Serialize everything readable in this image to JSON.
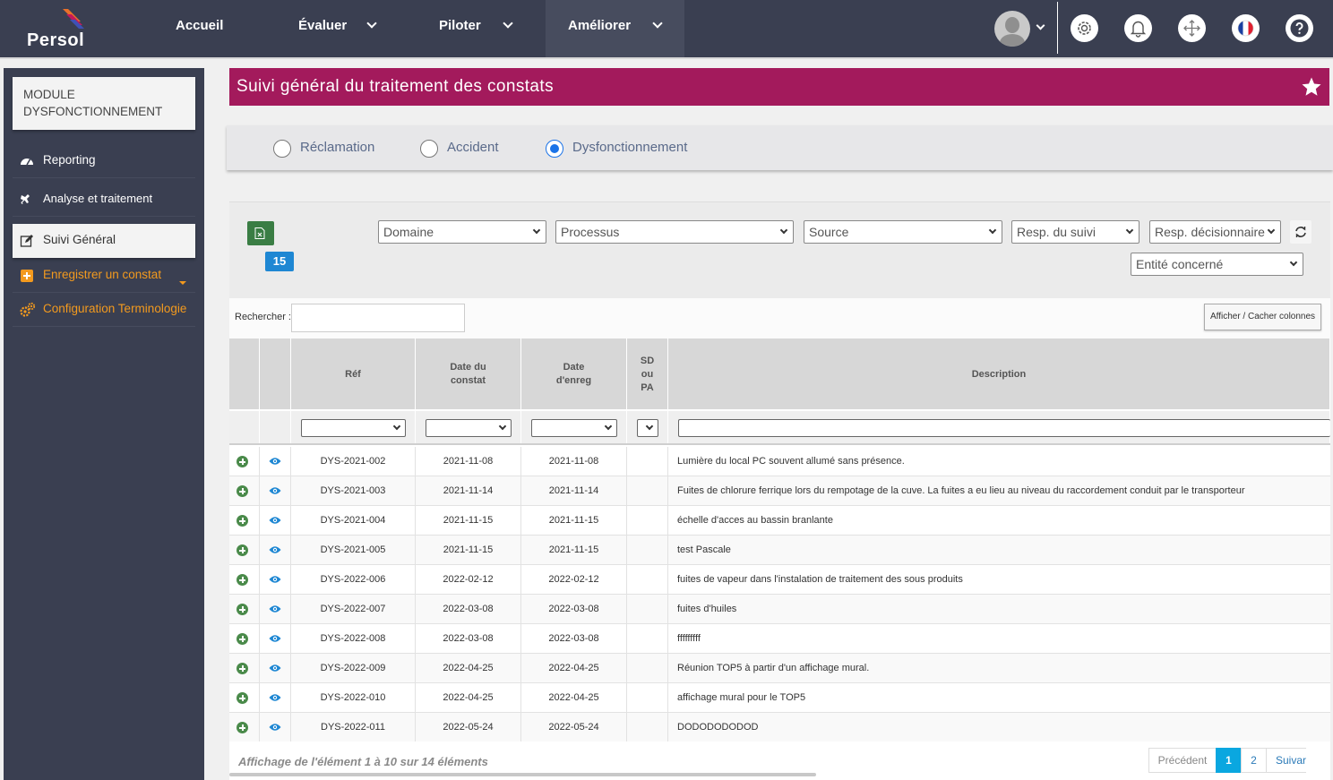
{
  "brand": {
    "name": "Persol"
  },
  "nav": {
    "items": [
      {
        "label": "Accueil"
      },
      {
        "label": "Évaluer"
      },
      {
        "label": "Piloter"
      },
      {
        "label": "Améliorer"
      }
    ]
  },
  "sidebar": {
    "module_title": "MODULE DYSFONCTIONNEMENT",
    "items": [
      {
        "label": "Reporting"
      },
      {
        "label": "Analyse et traitement"
      },
      {
        "label": "Suivi Général"
      },
      {
        "label": "Enregistrer un constat"
      },
      {
        "label": "Configuration Terminologie"
      }
    ]
  },
  "page": {
    "title": "Suivi général du traitement des constats"
  },
  "radios": {
    "options": [
      {
        "label": "Réclamation",
        "checked": false
      },
      {
        "label": "Accident",
        "checked": false
      },
      {
        "label": "Dysfonctionnement",
        "checked": true
      }
    ]
  },
  "filters": {
    "count": "15",
    "domaine": "Domaine",
    "processus": "Processus",
    "source": "Source",
    "resp_suivi": "Resp. du suivi",
    "resp_decisionnaire": "Resp. décisionnaire",
    "entite": "Entité concerné"
  },
  "search": {
    "label": "Rechercher :",
    "value": "",
    "columns_button": "Afficher / Cacher colonnes"
  },
  "table": {
    "headers": {
      "ref": "Réf",
      "date_constat": "Date du constat",
      "date_enreg": "Date d'enreg",
      "sd_pa": "SD ou PA",
      "description": "Description"
    },
    "rows": [
      {
        "ref": "DYS-2021-002",
        "date_constat": "2021-11-08",
        "date_enreg": "2021-11-08",
        "description": "Lumière du local PC souvent allumé sans présence."
      },
      {
        "ref": "DYS-2021-003",
        "date_constat": "2021-11-14",
        "date_enreg": "2021-11-14",
        "description": "Fuites de chlorure ferrique lors du rempotage de la cuve. La fuites a eu lieu au niveau du raccordement conduit par le transporteur"
      },
      {
        "ref": "DYS-2021-004",
        "date_constat": "2021-11-15",
        "date_enreg": "2021-11-15",
        "description": "échelle d'acces au bassin branlante"
      },
      {
        "ref": "DYS-2021-005",
        "date_constat": "2021-11-15",
        "date_enreg": "2021-11-15",
        "description": "test Pascale"
      },
      {
        "ref": "DYS-2022-006",
        "date_constat": "2022-02-12",
        "date_enreg": "2022-02-12",
        "description": "fuites de vapeur dans l'instalation de traitement des sous produits"
      },
      {
        "ref": "DYS-2022-007",
        "date_constat": "2022-03-08",
        "date_enreg": "2022-03-08",
        "description": "fuites d'huiles"
      },
      {
        "ref": "DYS-2022-008",
        "date_constat": "2022-03-08",
        "date_enreg": "2022-03-08",
        "description": "fffffffff"
      },
      {
        "ref": "DYS-2022-009",
        "date_constat": "2022-04-25",
        "date_enreg": "2022-04-25",
        "description": "Réunion TOP5 à partir d'un affichage mural."
      },
      {
        "ref": "DYS-2022-010",
        "date_constat": "2022-04-25",
        "date_enreg": "2022-04-25",
        "description": "affichage mural pour le TOP5"
      },
      {
        "ref": "DYS-2022-011",
        "date_constat": "2022-05-24",
        "date_enreg": "2022-05-24",
        "description": "DODODODODOD"
      }
    ]
  },
  "footer": {
    "info": "Affichage de l'élément 1 à 10 sur 14 éléments",
    "prev": "Précédent",
    "pages": [
      "1",
      "2"
    ],
    "next": "Suivar"
  },
  "colors": {
    "accent": "#a31a5c",
    "topbar": "#3a3f51",
    "orange": "#f39a1e",
    "badge": "#1e87d3"
  }
}
